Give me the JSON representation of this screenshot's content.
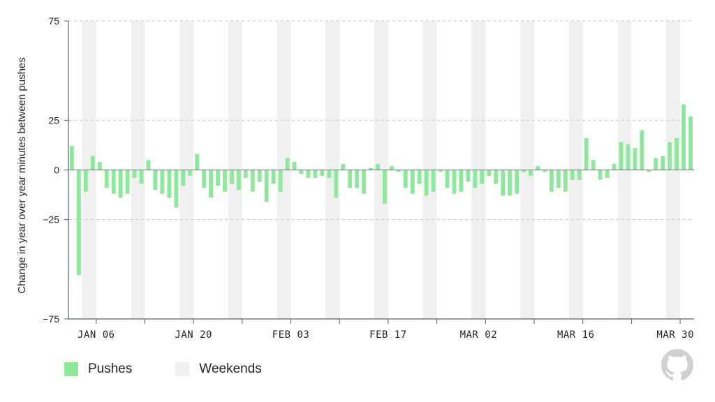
{
  "chart_data": {
    "type": "bar",
    "title": "",
    "xlabel": "",
    "ylabel": "Change in year over year minutes between pushes",
    "ylim": [
      -75,
      75
    ],
    "yticks": [
      75,
      25,
      0,
      -25,
      -75
    ],
    "grid": true,
    "legend_position": "bottom-left",
    "x_start": "2025-01-02",
    "x_ticks": [
      "JAN 06",
      "JAN 20",
      "FEB 03",
      "FEB 17",
      "MAR 02",
      "MAR 16",
      "MAR 30"
    ],
    "x_tick_dates": [
      "2025-01-06",
      "2025-01-20",
      "2025-02-03",
      "2025-02-17",
      "2025-03-02",
      "2025-03-16",
      "2025-03-30"
    ],
    "weekend_start_dates": [
      "2025-01-04",
      "2025-01-11",
      "2025-01-18",
      "2025-01-25",
      "2025-02-01",
      "2025-02-08",
      "2025-02-15",
      "2025-02-22",
      "2025-03-01",
      "2025-03-08",
      "2025-03-15",
      "2025-03-22",
      "2025-03-29"
    ],
    "series": [
      {
        "name": "Pushes",
        "color": "#8ce99a",
        "values": [
          12,
          -53,
          -11,
          7,
          4,
          -9,
          -12,
          -14,
          -12,
          -4,
          -7,
          5,
          -10,
          -12,
          -14,
          -19,
          -8,
          -3,
          8,
          -9,
          -14,
          -8,
          -11,
          -7,
          -10,
          -4,
          -11,
          -6,
          -16,
          -7,
          -11,
          6,
          4,
          -2,
          -4,
          -4,
          -3,
          -4,
          -14,
          3,
          -9,
          -9,
          -12,
          1,
          3,
          -17,
          2,
          -1,
          -9,
          -12,
          -7,
          -13,
          -11,
          -1,
          -9,
          -12,
          -11,
          -6,
          -9,
          -7,
          -3,
          -7,
          -13,
          -13,
          -12,
          -1,
          -3,
          2,
          -1,
          -11,
          -9,
          -11,
          -5,
          -5,
          16,
          5,
          -5,
          -4,
          3,
          14,
          13,
          11,
          20,
          -1,
          6,
          7,
          14,
          16,
          33,
          27
        ]
      }
    ]
  },
  "legend": {
    "items": [
      {
        "label": "Pushes",
        "color": "#8ce99a"
      },
      {
        "label": "Weekends",
        "color": "#f0f0f0"
      }
    ]
  },
  "icons": {
    "logo": "github-octocat-icon"
  }
}
